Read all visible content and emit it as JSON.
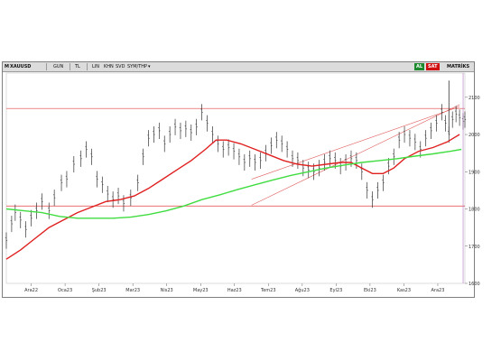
{
  "toolbar": {
    "symbol": "XAUUSD",
    "period": "GUN",
    "currency": "TL",
    "menus": [
      "LIN",
      "KHN",
      "SVD",
      "SYM/THP"
    ],
    "buy_label": "AL",
    "sell_label": "SAT",
    "right_label": "MATRİKS",
    "buy_color": "#1e8a2e",
    "sell_color": "#d01010"
  },
  "chart_data": {
    "type": "bar",
    "title": "",
    "xlabel": "",
    "ylabel": "",
    "ylim": [
      1600,
      2165
    ],
    "y_ticks": [
      1600,
      1700,
      1800,
      1900,
      2000,
      2100
    ],
    "x_tick_labels": [
      "Ara22",
      "Oca23",
      "Şub23",
      "Mar23",
      "Nis23",
      "May23",
      "Haz23",
      "Tem23",
      "Ağu23",
      "Eyl23",
      "Eki23",
      "Kas23",
      "Ara23"
    ],
    "horizontal_lines": [
      {
        "value": 2070,
        "color": "#e04040"
      },
      {
        "value": 1808,
        "color": "#e04040"
      }
    ],
    "trendlines": [
      {
        "from": [
          138,
          1880
        ],
        "to": [
          255,
          2075
        ],
        "color": "#e05a5a"
      },
      {
        "from": [
          138,
          1810
        ],
        "to": [
          255,
          2080
        ],
        "color": "#e05a5a"
      }
    ],
    "series": [
      {
        "type": "ohlc",
        "color": "#333333",
        "points": [
          [
            0,
            1715
          ],
          [
            3,
            1760
          ],
          [
            5,
            1790
          ],
          [
            8,
            1770
          ],
          [
            11,
            1745
          ],
          [
            14,
            1775
          ],
          [
            17,
            1795
          ],
          [
            20,
            1820
          ],
          [
            24,
            1795
          ],
          [
            27,
            1830
          ],
          [
            31,
            1870
          ],
          [
            34,
            1880
          ],
          [
            38,
            1920
          ],
          [
            42,
            1935
          ],
          [
            45,
            1960
          ],
          [
            48,
            1940
          ],
          [
            51,
            1880
          ],
          [
            54,
            1865
          ],
          [
            57,
            1840
          ],
          [
            60,
            1825
          ],
          [
            63,
            1835
          ],
          [
            66,
            1815
          ],
          [
            70,
            1830
          ],
          [
            74,
            1870
          ],
          [
            77,
            1940
          ],
          [
            80,
            1990
          ],
          [
            83,
            2000
          ],
          [
            86,
            2010
          ],
          [
            89,
            1975
          ],
          [
            92,
            2000
          ],
          [
            95,
            2020
          ],
          [
            98,
            2010
          ],
          [
            101,
            2015
          ],
          [
            104,
            2005
          ],
          [
            107,
            2020
          ],
          [
            110,
            2060
          ],
          [
            113,
            2030
          ],
          [
            116,
            2000
          ],
          [
            119,
            1975
          ],
          [
            122,
            1960
          ],
          [
            125,
            1965
          ],
          [
            128,
            1955
          ],
          [
            131,
            1940
          ],
          [
            134,
            1925
          ],
          [
            137,
            1935
          ],
          [
            140,
            1925
          ],
          [
            143,
            1930
          ],
          [
            146,
            1950
          ],
          [
            149,
            1970
          ],
          [
            152,
            1985
          ],
          [
            155,
            1975
          ],
          [
            158,
            1960
          ],
          [
            161,
            1935
          ],
          [
            164,
            1930
          ],
          [
            167,
            1910
          ],
          [
            170,
            1905
          ],
          [
            173,
            1900
          ],
          [
            176,
            1910
          ],
          [
            179,
            1925
          ],
          [
            182,
            1935
          ],
          [
            185,
            1930
          ],
          [
            188,
            1915
          ],
          [
            191,
            1925
          ],
          [
            194,
            1935
          ],
          [
            197,
            1930
          ],
          [
            200,
            1900
          ],
          [
            203,
            1850
          ],
          [
            206,
            1825
          ],
          [
            209,
            1850
          ],
          [
            212,
            1870
          ],
          [
            215,
            1915
          ],
          [
            218,
            1940
          ],
          [
            221,
            1985
          ],
          [
            224,
            2000
          ],
          [
            227,
            1990
          ],
          [
            230,
            1980
          ],
          [
            233,
            1960
          ],
          [
            236,
            1990
          ],
          [
            239,
            2010
          ],
          [
            242,
            2030
          ],
          [
            245,
            2060
          ],
          [
            247,
            2030
          ],
          [
            249,
            2000
          ],
          [
            251,
            2040
          ],
          [
            253,
            2055
          ],
          [
            255,
            2045
          ],
          [
            257,
            2035
          ],
          [
            258,
            2040
          ]
        ]
      },
      {
        "type": "line",
        "color": "#e02020",
        "label": "",
        "points": [
          [
            0,
            1665
          ],
          [
            8,
            1690
          ],
          [
            16,
            1720
          ],
          [
            24,
            1750
          ],
          [
            32,
            1770
          ],
          [
            40,
            1790
          ],
          [
            48,
            1805
          ],
          [
            56,
            1820
          ],
          [
            64,
            1825
          ],
          [
            72,
            1835
          ],
          [
            80,
            1855
          ],
          [
            88,
            1880
          ],
          [
            96,
            1905
          ],
          [
            104,
            1930
          ],
          [
            112,
            1960
          ],
          [
            118,
            1985
          ],
          [
            124,
            1985
          ],
          [
            132,
            1975
          ],
          [
            140,
            1960
          ],
          [
            148,
            1945
          ],
          [
            156,
            1930
          ],
          [
            164,
            1920
          ],
          [
            172,
            1915
          ],
          [
            180,
            1920
          ],
          [
            188,
            1925
          ],
          [
            194,
            1925
          ],
          [
            200,
            1910
          ],
          [
            206,
            1895
          ],
          [
            212,
            1895
          ],
          [
            218,
            1910
          ],
          [
            224,
            1935
          ],
          [
            232,
            1955
          ],
          [
            240,
            1965
          ],
          [
            248,
            1980
          ],
          [
            255,
            2000
          ]
        ]
      },
      {
        "type": "line",
        "color": "#40dd40",
        "label": "",
        "points": [
          [
            0,
            1800
          ],
          [
            10,
            1795
          ],
          [
            20,
            1790
          ],
          [
            30,
            1780
          ],
          [
            40,
            1775
          ],
          [
            50,
            1775
          ],
          [
            60,
            1775
          ],
          [
            70,
            1778
          ],
          [
            80,
            1785
          ],
          [
            90,
            1795
          ],
          [
            100,
            1808
          ],
          [
            110,
            1825
          ],
          [
            120,
            1838
          ],
          [
            130,
            1852
          ],
          [
            140,
            1865
          ],
          [
            150,
            1878
          ],
          [
            160,
            1890
          ],
          [
            170,
            1900
          ],
          [
            180,
            1910
          ],
          [
            190,
            1918
          ],
          [
            200,
            1925
          ],
          [
            210,
            1930
          ],
          [
            220,
            1935
          ],
          [
            230,
            1942
          ],
          [
            240,
            1948
          ],
          [
            250,
            1955
          ],
          [
            256,
            1960
          ]
        ]
      }
    ]
  }
}
